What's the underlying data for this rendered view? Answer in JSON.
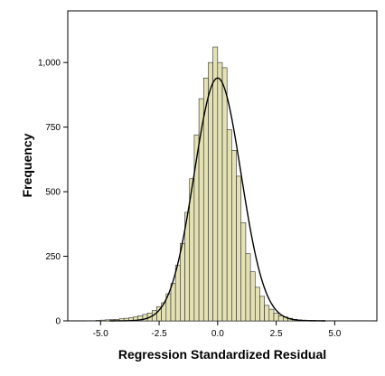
{
  "chart_data": {
    "type": "bar",
    "subtype": "histogram",
    "title": "",
    "xlabel": "Regression Standardized Residual",
    "ylabel": "Frequency",
    "xlim": [
      -6.4,
      6.8
    ],
    "ylim": [
      0,
      1200
    ],
    "x_ticks": [
      -5.0,
      -2.5,
      0.0,
      2.5,
      5.0
    ],
    "x_tick_labels": [
      "-5.0",
      "-2.5",
      "0.0",
      "2.5",
      "5.0"
    ],
    "y_ticks": [
      0,
      250,
      500,
      750,
      1000
    ],
    "y_tick_labels": [
      "0",
      "250",
      "500",
      "750",
      "1,000"
    ],
    "bin_width": 0.2,
    "bin_starts": [
      -5.6,
      -5.4,
      -5.2,
      -5.0,
      -4.8,
      -4.6,
      -4.4,
      -4.2,
      -4.0,
      -3.8,
      -3.6,
      -3.4,
      -3.2,
      -3.0,
      -2.8,
      -2.6,
      -2.4,
      -2.2,
      -2.0,
      -1.8,
      -1.6,
      -1.4,
      -1.2,
      -1.0,
      -0.8,
      -0.6,
      -0.4,
      -0.2,
      0.0,
      0.2,
      0.4,
      0.6,
      0.8,
      1.0,
      1.2,
      1.4,
      1.6,
      1.8,
      2.0,
      2.2,
      2.4,
      2.6,
      2.8,
      3.0,
      3.2,
      3.4,
      3.6,
      3.8,
      4.0,
      4.2,
      4.4,
      4.6,
      4.8,
      5.0,
      5.2,
      5.4,
      5.6,
      5.8,
      6.0,
      6.2,
      6.4
    ],
    "values": [
      1,
      1,
      2,
      3,
      4,
      5,
      6,
      8,
      10,
      12,
      15,
      20,
      25,
      30,
      40,
      55,
      70,
      105,
      145,
      215,
      300,
      420,
      550,
      720,
      860,
      940,
      1000,
      1060,
      1000,
      980,
      740,
      660,
      560,
      380,
      260,
      190,
      130,
      95,
      60,
      45,
      30,
      20,
      15,
      10,
      6,
      4,
      3,
      2,
      2,
      1,
      1,
      1,
      1,
      1,
      1,
      1,
      1,
      1,
      1,
      1,
      1
    ],
    "normal_curve": {
      "mean": 0.0,
      "sd": 1.0,
      "peak": 940
    },
    "bar_fill": "#e4e2b4",
    "bar_stroke": "#2b2b2b",
    "curve_color": "#000000",
    "grid": false,
    "legend": "none"
  }
}
